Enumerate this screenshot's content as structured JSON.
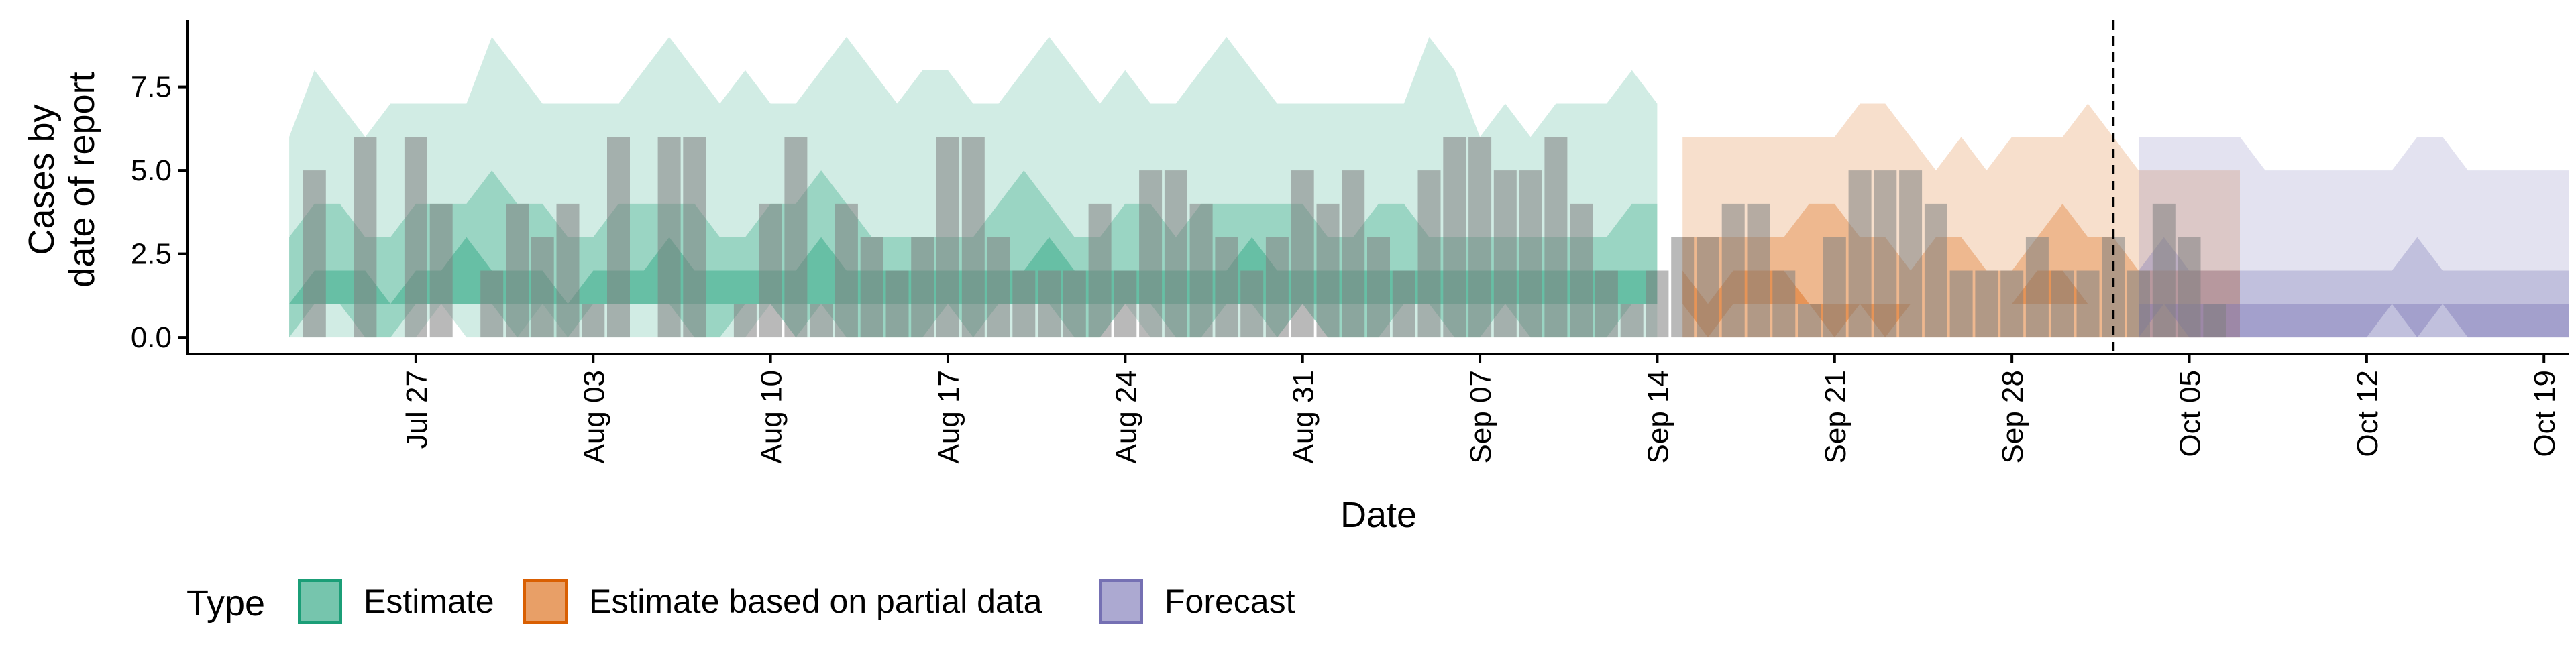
{
  "chart_data": {
    "type": "area",
    "xlabel": "Date",
    "ylabel_lines": [
      "Cases by",
      "date of report"
    ],
    "ylim": [
      -0.5,
      9.5
    ],
    "yticks": [
      0.0,
      2.5,
      5.0,
      7.5
    ],
    "ytick_labels": [
      "0.0",
      "2.5",
      "5.0",
      "7.5"
    ],
    "xlim": [
      "2020-07-18",
      "2020-10-20"
    ],
    "xticks": [
      "2020-07-27",
      "2020-08-03",
      "2020-08-10",
      "2020-08-17",
      "2020-08-24",
      "2020-08-31",
      "2020-09-07",
      "2020-09-14",
      "2020-09-21",
      "2020-09-28",
      "2020-10-05",
      "2020-10-12",
      "2020-10-19"
    ],
    "xtick_labels": [
      "Jul 27",
      "Aug 03",
      "Aug 10",
      "Aug 17",
      "Aug 24",
      "Aug 31",
      "Sep 07",
      "Sep 14",
      "Sep 21",
      "Sep 28",
      "Oct 05",
      "Oct 12",
      "Oct 19"
    ],
    "vline_date": "2020-10-02",
    "legend": {
      "title": "Type",
      "position": "bottom",
      "items": [
        {
          "label": "Estimate",
          "color": "#1b9e77"
        },
        {
          "label": "Estimate based on partial data",
          "color": "#d95f02"
        },
        {
          "label": "Forecast",
          "color": "#7570b3"
        }
      ]
    },
    "bar_color": "#808080",
    "reported_cases": {
      "start_date": "2020-07-23",
      "values": [
        5,
        0,
        6,
        0,
        6,
        4,
        0,
        2,
        4,
        3,
        4,
        1,
        6,
        0,
        6,
        6,
        0,
        1,
        4,
        6,
        1,
        4,
        3,
        2,
        3,
        6,
        6,
        3,
        2,
        2,
        2,
        4,
        2,
        5,
        5,
        4,
        3,
        2,
        3,
        5,
        4,
        5,
        3,
        2,
        5,
        6,
        6,
        5,
        5,
        6,
        4,
        2,
        1,
        2,
        3,
        3,
        4,
        4,
        2,
        1,
        3,
        5,
        5,
        5,
        4,
        2,
        2,
        2,
        3,
        2,
        2,
        3,
        2,
        4,
        3,
        1
      ]
    },
    "series": [
      {
        "name": "Estimate",
        "color": "#1b9e77",
        "start_date": "2020-07-22",
        "outer_upper": [
          6,
          8,
          7,
          6,
          7,
          7,
          7,
          7,
          9,
          8,
          7,
          7,
          7,
          7,
          8,
          9,
          8,
          7,
          8,
          7,
          7,
          8,
          9,
          8,
          7,
          8,
          8,
          7,
          7,
          8,
          9,
          8,
          7,
          8,
          7,
          7,
          8,
          9,
          8,
          7,
          7,
          7,
          7,
          7,
          7,
          9,
          8,
          6,
          7,
          6,
          7,
          7,
          7,
          8,
          7
        ],
        "outer_lower": [
          0,
          0,
          0,
          0,
          0,
          0,
          1,
          0,
          0,
          0,
          1,
          0,
          0,
          0,
          0,
          0,
          0,
          0,
          0,
          1,
          0,
          0,
          0,
          0,
          0,
          0,
          0,
          0,
          0,
          0,
          0,
          0,
          0,
          1,
          0,
          0,
          0,
          0,
          0,
          0,
          1,
          0,
          0,
          0,
          0,
          0,
          0,
          0,
          0,
          0,
          0,
          0,
          0,
          0,
          0
        ],
        "mid_upper": [
          3,
          4,
          4,
          3,
          3,
          4,
          4,
          4,
          5,
          4,
          4,
          3,
          3,
          4,
          4,
          4,
          4,
          3,
          3,
          4,
          4,
          5,
          4,
          3,
          3,
          3,
          3,
          3,
          4,
          5,
          4,
          3,
          3,
          4,
          4,
          3,
          4,
          4,
          4,
          4,
          4,
          3,
          3,
          4,
          4,
          3,
          3,
          3,
          3,
          3,
          3,
          3,
          3,
          4,
          4
        ],
        "mid_lower": [
          0,
          1,
          1,
          0,
          0,
          1,
          1,
          1,
          1,
          0,
          0,
          0,
          1,
          1,
          1,
          1,
          0,
          0,
          1,
          1,
          0,
          1,
          0,
          0,
          0,
          0,
          1,
          0,
          1,
          1,
          1,
          0,
          0,
          1,
          1,
          0,
          0,
          1,
          1,
          0,
          1,
          0,
          0,
          0,
          1,
          1,
          0,
          0,
          1,
          0,
          0,
          0,
          0,
          1,
          1
        ],
        "inner_upper": [
          1,
          2,
          2,
          2,
          1,
          2,
          2,
          3,
          2,
          2,
          2,
          1,
          2,
          2,
          2,
          3,
          2,
          2,
          2,
          2,
          2,
          3,
          2,
          2,
          2,
          2,
          2,
          2,
          2,
          2,
          3,
          2,
          2,
          2,
          2,
          2,
          2,
          2,
          3,
          2,
          2,
          2,
          2,
          2,
          2,
          2,
          2,
          2,
          2,
          2,
          2,
          2,
          2,
          2,
          2
        ],
        "inner_lower": [
          1,
          1,
          1,
          1,
          1,
          1,
          1,
          1,
          1,
          1,
          1,
          1,
          1,
          1,
          1,
          1,
          1,
          1,
          1,
          1,
          1,
          1,
          1,
          1,
          1,
          1,
          1,
          1,
          1,
          1,
          1,
          1,
          1,
          1,
          1,
          1,
          1,
          1,
          1,
          1,
          1,
          1,
          1,
          1,
          1,
          1,
          1,
          1,
          1,
          1,
          1,
          1,
          1,
          1,
          1
        ]
      },
      {
        "name": "Estimate based on partial data",
        "color": "#d95f02",
        "start_date": "2020-09-15",
        "outer_upper": [
          6,
          6,
          6,
          6,
          6,
          6,
          6,
          7,
          7,
          6,
          5,
          6,
          5,
          6,
          6,
          6,
          7,
          6,
          5,
          5,
          5,
          5,
          5
        ],
        "outer_lower": [
          0,
          0,
          0,
          0,
          0,
          0,
          0,
          0,
          0,
          0,
          0,
          0,
          0,
          0,
          0,
          0,
          0,
          0,
          0,
          0,
          0,
          0,
          0
        ],
        "mid_upper": [
          3,
          3,
          3,
          3,
          3,
          4,
          4,
          3,
          3,
          2,
          3,
          3,
          2,
          2,
          3,
          4,
          3,
          3,
          2,
          2,
          2,
          2,
          2
        ],
        "mid_lower": [
          0,
          0,
          0,
          0,
          0,
          0,
          0,
          0,
          0,
          0,
          0,
          0,
          0,
          0,
          0,
          0,
          0,
          0,
          0,
          0,
          0,
          0,
          0
        ],
        "inner_upper": [
          2,
          1,
          2,
          2,
          2,
          1,
          1,
          1,
          1,
          1,
          1,
          1,
          1,
          1,
          2,
          2,
          1,
          1,
          1,
          1,
          1,
          1,
          1
        ],
        "inner_lower": [
          1,
          0,
          1,
          1,
          1,
          1,
          0,
          1,
          0,
          1,
          1,
          1,
          1,
          1,
          1,
          1,
          1,
          1,
          1,
          1,
          1,
          1,
          1
        ]
      },
      {
        "name": "Forecast",
        "color": "#7570b3",
        "start_date": "2020-10-03",
        "outer_upper": [
          6,
          6,
          6,
          6,
          6,
          5,
          5,
          5,
          5,
          5,
          5,
          6,
          6,
          5,
          5,
          5,
          5,
          5
        ],
        "outer_lower": [
          0,
          0,
          0,
          0,
          0,
          0,
          0,
          0,
          0,
          0,
          0,
          0,
          0,
          0,
          0,
          0,
          0,
          0
        ],
        "mid_upper": [
          2,
          3,
          2,
          2,
          2,
          2,
          2,
          2,
          2,
          2,
          2,
          3,
          2,
          2,
          2,
          2,
          2,
          2
        ],
        "mid_lower": [
          0,
          0,
          0,
          0,
          0,
          0,
          0,
          0,
          0,
          0,
          0,
          0,
          0,
          0,
          0,
          0,
          0,
          0
        ],
        "inner_upper": [
          1,
          1,
          1,
          1,
          1,
          1,
          1,
          1,
          1,
          1,
          1,
          1,
          1,
          1,
          1,
          1,
          1,
          1
        ],
        "inner_lower": [
          0,
          1,
          0,
          0,
          0,
          0,
          0,
          0,
          0,
          0,
          1,
          0,
          1,
          0,
          0,
          0,
          0,
          0
        ]
      }
    ]
  }
}
